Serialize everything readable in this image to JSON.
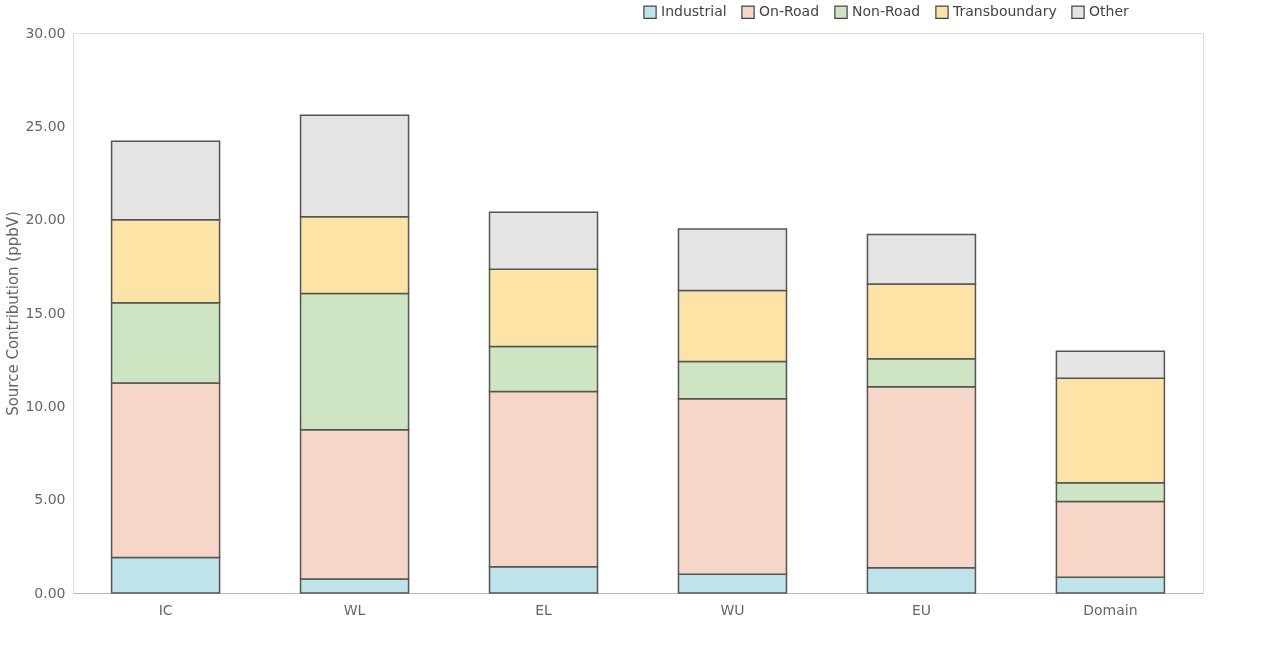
{
  "chart_data": {
    "type": "bar",
    "stacked": true,
    "ylabel": "Source Contribution (ppbV)",
    "categories": [
      "IC",
      "WL",
      "EL",
      "WU",
      "EU",
      "Domain"
    ],
    "series": [
      {
        "name": "Industrial",
        "color": "#bfe3ea",
        "values": [
          1.9,
          0.75,
          1.4,
          1.0,
          1.35,
          0.85
        ]
      },
      {
        "name": "On-Road",
        "color": "#f6d6c6",
        "values": [
          9.35,
          8.0,
          9.4,
          9.4,
          9.7,
          4.05
        ]
      },
      {
        "name": "Non-Road",
        "color": "#cde5c3",
        "values": [
          4.3,
          7.3,
          2.4,
          2.0,
          1.5,
          1.0
        ]
      },
      {
        "name": "Transboundary",
        "color": "#fde4a6",
        "values": [
          4.45,
          4.1,
          4.15,
          3.8,
          4.0,
          5.6
        ]
      },
      {
        "name": "Other",
        "color": "#e4e4e4",
        "values": [
          4.2,
          5.45,
          3.05,
          3.3,
          2.65,
          1.45
        ]
      }
    ],
    "ylim": [
      0,
      30
    ],
    "yticks": [
      {
        "value": 0,
        "label": "0.00"
      },
      {
        "value": 5,
        "label": "5.00"
      },
      {
        "value": 10,
        "label": "10.00"
      },
      {
        "value": 15,
        "label": "15.00"
      },
      {
        "value": 20,
        "label": "20.00"
      },
      {
        "value": 25,
        "label": "25.00"
      },
      {
        "value": 30,
        "label": "30.00"
      }
    ],
    "grid": false,
    "legend": "top right"
  }
}
